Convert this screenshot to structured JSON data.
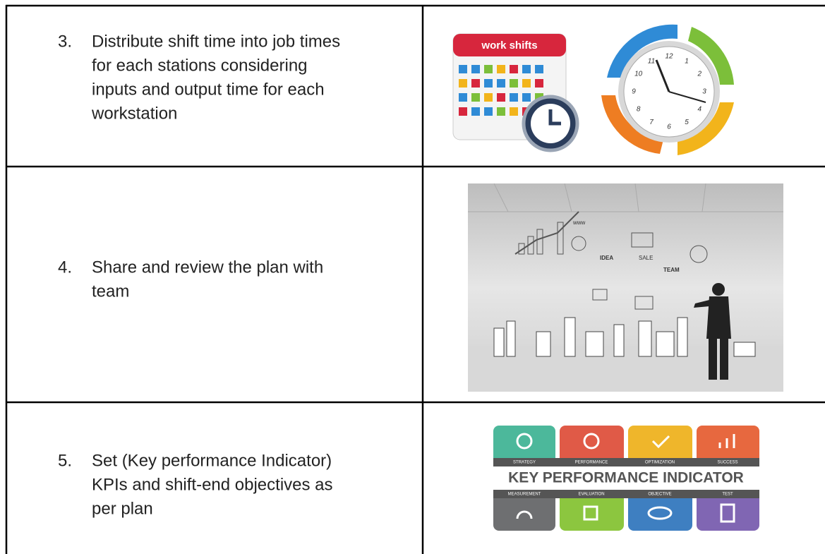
{
  "table": {
    "rows": [
      {
        "number": "3.",
        "lines": [
          "Distribute shift time into job times",
          "for each stations considering",
          "inputs and output time for each",
          "workstation"
        ],
        "image": {
          "calendar_label": "work shifts",
          "clock_numbers": [
            "10",
            "11",
            "12",
            "1",
            "2",
            "3",
            "4",
            "5",
            "6",
            "7",
            "8",
            "9"
          ]
        }
      },
      {
        "number": "4.",
        "lines": [
          "Share and review the plan with",
          "team"
        ],
        "image": {
          "labels": [
            "www",
            "IDEA",
            "SALE",
            "TEAM"
          ]
        }
      },
      {
        "number": "5.",
        "lines": [
          "Set (Key performance Indicator)",
          "KPIs and shift-end objectives as",
          "per plan"
        ],
        "image": {
          "top_labels": [
            "STRATEGY",
            "PERFORMANCE",
            "OPTIMIZATION",
            "SUCCESS"
          ],
          "title": "KEY PERFORMANCE INDICATOR",
          "bottom_labels": [
            "MEASUREMENT",
            "EVALUATION",
            "OBJECTIVE",
            "TEST"
          ]
        }
      }
    ]
  }
}
